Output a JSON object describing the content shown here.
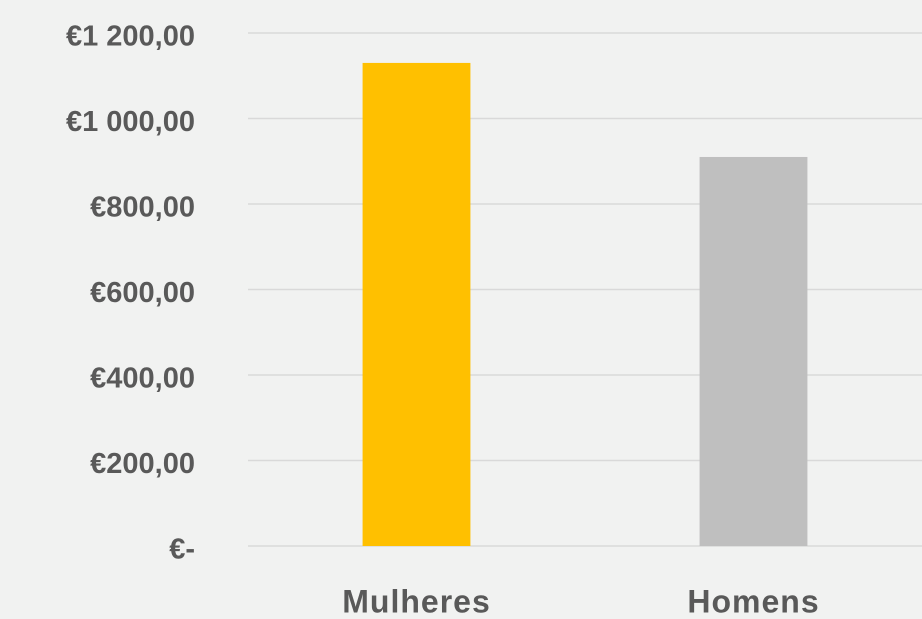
{
  "chart_data": {
    "type": "bar",
    "categories": [
      "Mulheres",
      "Homens"
    ],
    "values": [
      1130,
      910
    ],
    "colors": [
      "#ffc000",
      "#bfbfbf"
    ],
    "ylim": [
      0,
      1200
    ],
    "yticks": [
      {
        "value": 0,
        "label": "€-"
      },
      {
        "value": 200,
        "label": "€200,00"
      },
      {
        "value": 400,
        "label": "€400,00"
      },
      {
        "value": 600,
        "label": "€600,00"
      },
      {
        "value": 800,
        "label": "€800,00"
      },
      {
        "value": 1000,
        "label": "€1 000,00"
      },
      {
        "value": 1200,
        "label": "€1 200,00"
      }
    ],
    "grid": true
  }
}
